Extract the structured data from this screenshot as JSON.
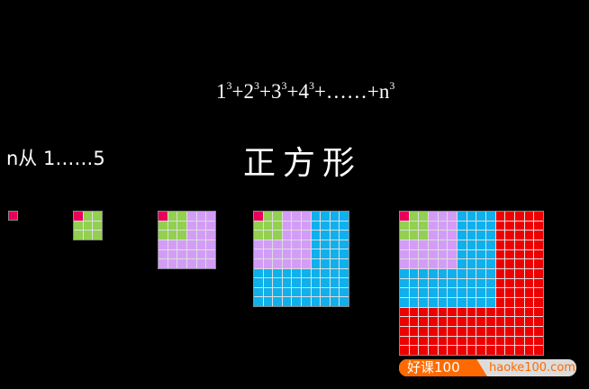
{
  "formula": {
    "terms": [
      "1",
      "2",
      "3",
      "4"
    ],
    "exponent": "3",
    "ellipsis": "+……+",
    "last": "n"
  },
  "range_label": "n从 1……5",
  "title": "正方形",
  "colors": [
    "#e8005a",
    "#92d050",
    "#d39df7",
    "#0fb0ec",
    "#ee0000"
  ],
  "squares": [
    {
      "n": 1,
      "side": 1
    },
    {
      "n": 2,
      "side": 3
    },
    {
      "n": 3,
      "side": 6
    },
    {
      "n": 4,
      "side": 10
    },
    {
      "n": 5,
      "side": 15
    }
  ],
  "watermark": {
    "brand": "好课100",
    "url": "haoke100.com"
  }
}
